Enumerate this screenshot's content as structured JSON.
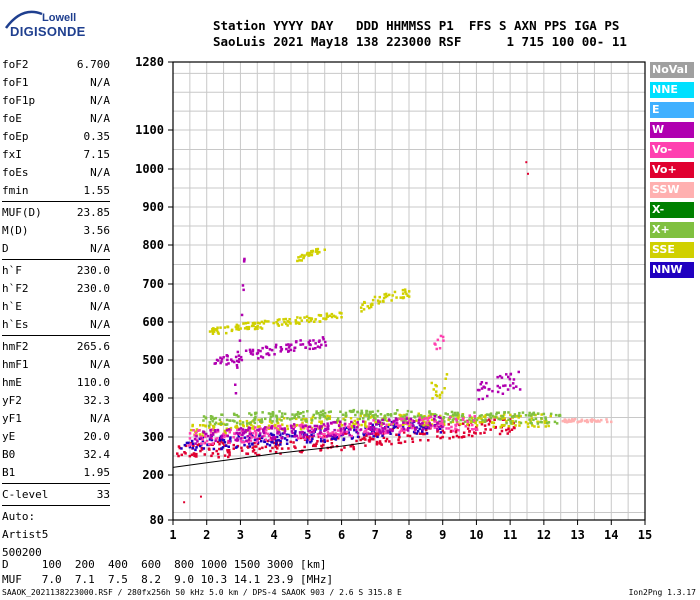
{
  "logo": {
    "line1": "Lowell",
    "line2": "DIGISONDE"
  },
  "header": {
    "line1": "Station YYYY DAY   DDD HHMMSS P1  FFS S AXN PPS IGA PS",
    "line2": "SaoLuis 2021 May18 138 223000 RSF      1 715 100 00- 11"
  },
  "params": [
    {
      "label": "foF2",
      "value": "6.700"
    },
    {
      "label": "foF1",
      "value": "N/A"
    },
    {
      "label": "foF1p",
      "value": "N/A"
    },
    {
      "label": "foE",
      "value": "N/A"
    },
    {
      "label": "foEp",
      "value": "0.35"
    },
    {
      "label": "fxI",
      "value": "7.15"
    },
    {
      "label": "foEs",
      "value": "N/A"
    },
    {
      "label": "fmin",
      "value": "1.55"
    },
    {
      "sep": true
    },
    {
      "label": "MUF(D)",
      "value": "23.85"
    },
    {
      "label": "M(D)",
      "value": "3.56"
    },
    {
      "label": "D",
      "value": "N/A"
    },
    {
      "sep": true
    },
    {
      "label": "h`F",
      "value": "230.0"
    },
    {
      "label": "h`F2",
      "value": "230.0"
    },
    {
      "label": "h`E",
      "value": "N/A"
    },
    {
      "label": "h`Es",
      "value": "N/A"
    },
    {
      "sep": true
    },
    {
      "label": "hmF2",
      "value": "265.6"
    },
    {
      "label": "hmF1",
      "value": "N/A"
    },
    {
      "label": "hmE",
      "value": "110.0"
    },
    {
      "label": "yF2",
      "value": "32.3"
    },
    {
      "label": "yF1",
      "value": "N/A"
    },
    {
      "label": "yE",
      "value": "20.0"
    },
    {
      "label": "B0",
      "value": "32.4"
    },
    {
      "label": "B1",
      "value": "1.95"
    },
    {
      "sep": true
    },
    {
      "label": "C-level",
      "value": "33"
    },
    {
      "sep": true
    },
    {
      "text": "Auto:"
    },
    {
      "text": "Artist5"
    },
    {
      "text": "500200"
    }
  ],
  "legend": [
    {
      "label": "NoVal",
      "color": "#a0a0a0"
    },
    {
      "label": "NNE",
      "color": "#00e0ff"
    },
    {
      "label": "E",
      "color": "#40b0ff"
    },
    {
      "label": "W",
      "color": "#b000b0"
    },
    {
      "label": "Vo-",
      "color": "#ff40b0"
    },
    {
      "label": "Vo+",
      "color": "#e00030"
    },
    {
      "label": "SSW",
      "color": "#ffb0b0"
    },
    {
      "label": "X-",
      "color": "#008000"
    },
    {
      "label": "X+",
      "color": "#80c040"
    },
    {
      "label": "SSE",
      "color": "#d0d000"
    },
    {
      "label": "NNW",
      "color": "#2000c0"
    }
  ],
  "footer": {
    "line1": "D     100  200  400  600  800 1000 1500 3000 [km]",
    "line2": "MUF   7.0  7.1  7.5  8.2  9.0 10.3 14.1 23.9 [MHz]"
  },
  "footnote": "SAAOK_2021138223000.RSF / 280fx256h 50 kHz 5.0 km / DPS-4 SAAOK 903 / 2.6 S 315.8 E",
  "version": "Ion2Png 1.3.17",
  "chart_data": {
    "type": "scatter",
    "x_range": [
      1,
      15
    ],
    "y_range": [
      80,
      1280
    ],
    "x_ticks": [
      1,
      2,
      3,
      4,
      5,
      6,
      7,
      8,
      9,
      10,
      11,
      12,
      13,
      14,
      15
    ],
    "y_tick_labels": [
      80,
      200,
      300,
      400,
      500,
      600,
      700,
      800,
      900,
      1000,
      1100,
      1280
    ],
    "grid": true,
    "trace_segments": [
      {
        "color": "#e00030",
        "points": [
          [
            1.0,
            260
          ],
          [
            1.8,
            268
          ],
          [
            3.0,
            275
          ],
          [
            4.5,
            282
          ],
          [
            6.0,
            290
          ],
          [
            7.0,
            300
          ],
          [
            8.0,
            310
          ],
          [
            9.0,
            320
          ],
          [
            10.0,
            328
          ],
          [
            11.2,
            335
          ]
        ],
        "spread": 22
      },
      {
        "color": "#2000c0",
        "points": [
          [
            1.2,
            280
          ],
          [
            2.5,
            290
          ],
          [
            4.0,
            300
          ],
          [
            6.0,
            312
          ],
          [
            7.5,
            325
          ],
          [
            9.0,
            330
          ]
        ],
        "spread": 18
      },
      {
        "color": "#d0d000",
        "points": [
          [
            1.5,
            320
          ],
          [
            3.0,
            330
          ],
          [
            5.0,
            340
          ],
          [
            7.0,
            345
          ],
          [
            9.0,
            350
          ],
          [
            10.5,
            345
          ],
          [
            12.2,
            345
          ]
        ],
        "spread": 16
      },
      {
        "color": "#80c040",
        "points": [
          [
            1.8,
            345
          ],
          [
            4.0,
            355
          ],
          [
            6.5,
            360
          ],
          [
            9.0,
            355
          ],
          [
            12.5,
            350
          ]
        ],
        "spread": 14
      },
      {
        "color": "#ff40b0",
        "points": [
          [
            1.3,
            300
          ],
          [
            3.5,
            310
          ],
          [
            6.0,
            320
          ],
          [
            8.0,
            335
          ],
          [
            10.0,
            340
          ]
        ],
        "spread": 20
      },
      {
        "color": "#b000b0",
        "points": [
          [
            1.6,
            300
          ],
          [
            4.0,
            315
          ],
          [
            7.0,
            330
          ],
          [
            9.0,
            340
          ]
        ],
        "spread": 18
      },
      {
        "color": "#d0d000",
        "points": [
          [
            2.0,
            575
          ],
          [
            3.0,
            590
          ],
          [
            4.0,
            600
          ],
          [
            5.0,
            610
          ],
          [
            6.0,
            620
          ]
        ],
        "spread": 10
      },
      {
        "color": "#d0d000",
        "points": [
          [
            6.5,
            640
          ],
          [
            7.0,
            660
          ],
          [
            7.5,
            670
          ],
          [
            8.0,
            680
          ]
        ],
        "spread": 12
      },
      {
        "color": "#b000b0",
        "points": [
          [
            2.2,
            500
          ],
          [
            3.5,
            520
          ],
          [
            4.5,
            540
          ],
          [
            5.5,
            550
          ]
        ],
        "spread": 14
      },
      {
        "color": "#d0d000",
        "points": [
          [
            4.5,
            760
          ],
          [
            5.0,
            780
          ],
          [
            5.5,
            790
          ]
        ],
        "spread": 8
      },
      {
        "color": "#b000b0",
        "points": [
          [
            10.0,
            420
          ],
          [
            10.8,
            440
          ],
          [
            11.3,
            450
          ]
        ],
        "spread": 26
      },
      {
        "color": "#d0d000",
        "points": [
          [
            8.6,
            420
          ],
          [
            9.1,
            440
          ]
        ],
        "spread": 30
      },
      {
        "color": "#ff40b0",
        "points": [
          [
            8.7,
            540
          ],
          [
            9.0,
            560
          ]
        ],
        "spread": 18
      },
      {
        "color": "#b000b0",
        "points": [
          [
            2.8,
            400
          ],
          [
            3.0,
            600
          ],
          [
            3.1,
            800
          ]
        ],
        "spread": 40
      },
      {
        "color": "#ffb0b0",
        "points": [
          [
            12.5,
            345
          ],
          [
            14.0,
            345
          ]
        ],
        "spread": 4
      }
    ],
    "virtual_height_curve": [
      [
        1.0,
        220
      ],
      [
        2.0,
        232
      ],
      [
        3.0,
        244
      ],
      [
        4.0,
        256
      ],
      [
        5.0,
        266
      ],
      [
        6.0,
        276
      ],
      [
        6.7,
        285
      ]
    ],
    "stray_points": [
      [
        11.45,
        1020
      ],
      [
        11.5,
        990
      ],
      [
        1.3,
        130
      ],
      [
        1.8,
        145
      ]
    ]
  }
}
